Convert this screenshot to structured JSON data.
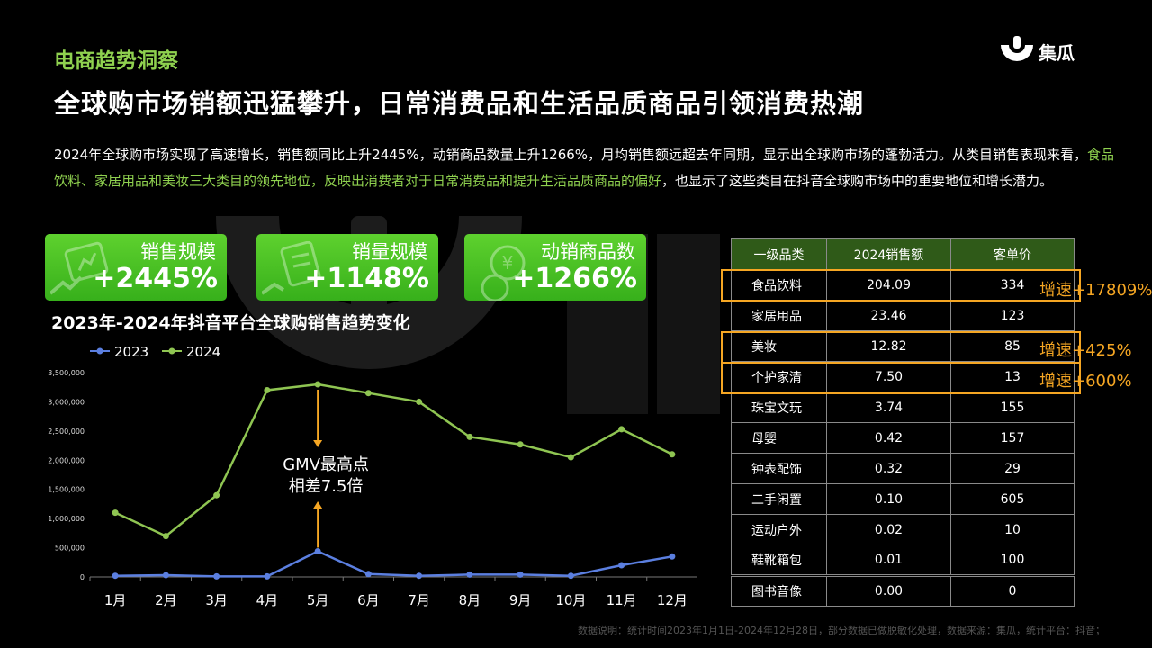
{
  "header": {
    "section_tag": "电商趋势洞察",
    "headline": "全球购市场销额迅猛攀升，日常消费品和生活品质商品引领消费热潮",
    "logo_text": "集瓜"
  },
  "intro": {
    "part1": "2024年全球购市场实现了高速增长，销售额同比上升2445%，动销商品数量上升1266%，月均销售额远超去年同期，显示出全球购市场的蓬勃活力。从类目销售表现来看，",
    "highlight": "食品饮料、家居用品和美妆三大类目的领先地位，反映出消费者对于日常消费品和提升生活品质商品的偏好",
    "part2": "，也显示了这些类目在抖音全球购市场中的重要地位和增长潜力。"
  },
  "kpis": [
    {
      "label": "销售规模",
      "value": "+2445%",
      "icon": "chart-card-icon"
    },
    {
      "label": "销量规模",
      "value": "+1148%",
      "icon": "receipt-icon"
    },
    {
      "label": "动销商品数",
      "value": "+1266%",
      "icon": "yen-coin-icon"
    }
  ],
  "chart_data": {
    "type": "line",
    "title": "2023年-2024年抖音平台全球购销售趋势变化",
    "categories": [
      "1月",
      "2月",
      "3月",
      "4月",
      "5月",
      "6月",
      "7月",
      "8月",
      "9月",
      "10月",
      "11月",
      "12月"
    ],
    "series": [
      {
        "name": "2023",
        "color": "#5b7fe0",
        "values": [
          20000,
          30000,
          10000,
          10000,
          440000,
          50000,
          20000,
          40000,
          40000,
          20000,
          200000,
          350000
        ]
      },
      {
        "name": "2024",
        "color": "#8fc552",
        "values": [
          1100000,
          700000,
          1400000,
          3200000,
          3300000,
          3150000,
          3000000,
          2400000,
          2270000,
          2050000,
          2530000,
          2100000
        ]
      }
    ],
    "ylim": [
      0,
      3500000
    ],
    "yticks": [
      "3,500,000",
      "3,000,000",
      "2,500,000",
      "2,000,000",
      "1,500,000",
      "1,000,000",
      "500,000",
      "0"
    ],
    "annotation": {
      "line1": "GMV最高点",
      "line2": "相差7.5倍",
      "month": "5月"
    }
  },
  "table": {
    "headers": [
      "一级品类",
      "2024销售额",
      "客单价"
    ],
    "rows": [
      [
        "食品饮料",
        "204.09",
        "334"
      ],
      [
        "家居用品",
        "23.46",
        "123"
      ],
      [
        "美妆",
        "12.82",
        "85"
      ],
      [
        "个护家清",
        "7.50",
        "13"
      ],
      [
        "珠宝文玩",
        "3.74",
        "155"
      ],
      [
        "母婴",
        "0.42",
        "157"
      ],
      [
        "钟表配饰",
        "0.32",
        "29"
      ],
      [
        "二手闲置",
        "0.10",
        "605"
      ],
      [
        "运动户外",
        "0.02",
        "10"
      ],
      [
        "鞋靴箱包",
        "0.01",
        "100"
      ],
      [
        "图书音像",
        "0.00",
        "0"
      ]
    ],
    "growth_labels": [
      "增速+17809%",
      "增速+425%",
      "增速+600%"
    ]
  },
  "footnote": "数据说明：统计时间2023年1月1日-2024年12月28日，部分数据已做脱敏化处理，数据来源：集瓜，统计平台：抖音；",
  "colors": {
    "accent_green": "#8fd14f",
    "kpi_green": "#4cc425",
    "highlight_orange": "#f5a623",
    "table_header": "#2f5a18",
    "line_2023": "#5b7fe0",
    "line_2024": "#8fc552"
  }
}
